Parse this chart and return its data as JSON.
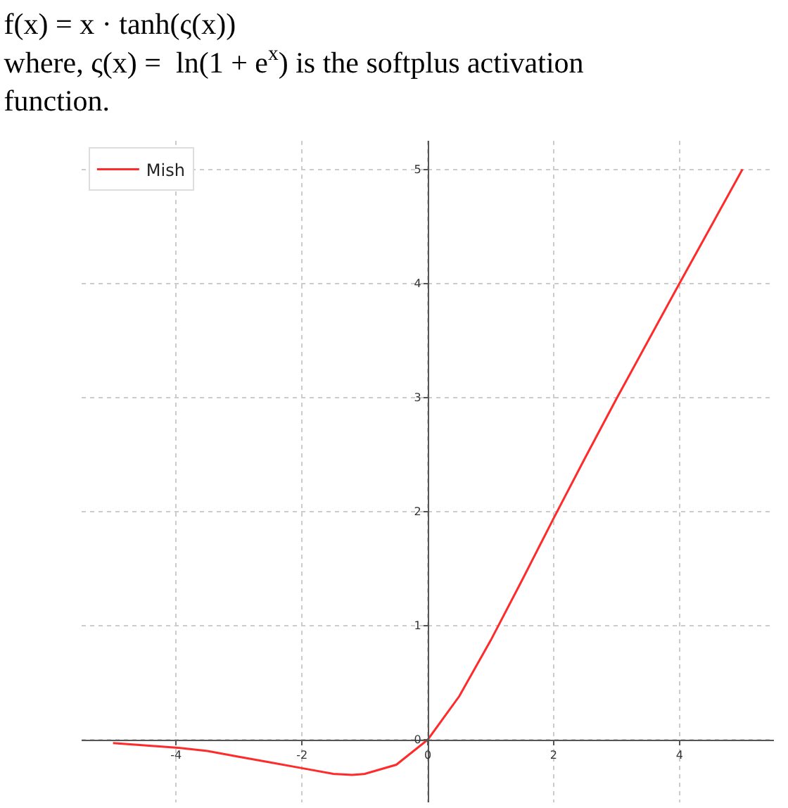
{
  "chart_data": {
    "type": "line",
    "title": "f(x) = x · tanh(ς(x))",
    "subtitle": "where, ς(x) =  ln(1 + e$^{x}$) is the softplus activation function.",
    "x": [
      -5,
      -4.5,
      -4,
      -3.5,
      -3,
      -2.5,
      -2,
      -1.5,
      -1.2,
      -1,
      -0.5,
      0,
      0.5,
      1,
      1.5,
      2,
      2.5,
      3,
      4,
      5
    ],
    "series": [
      {
        "name": "Mish",
        "color": "#ff2a2a",
        "values": [
          -0.03,
          -0.05,
          -0.07,
          -0.1,
          -0.15,
          -0.2,
          -0.25,
          -0.3,
          -0.31,
          -0.3,
          -0.22,
          0,
          0.38,
          0.87,
          1.4,
          1.94,
          2.47,
          2.99,
          4.0,
          5.0
        ]
      }
    ],
    "xlim": [
      -5.5,
      5.5
    ],
    "ylim": [
      -0.55,
      5.25
    ],
    "xticks": [
      -4,
      -2,
      0,
      2,
      4
    ],
    "yticks": [
      0,
      1,
      2,
      3,
      4,
      5
    ],
    "grid": true,
    "legend": "top left",
    "marker": "none",
    "line_style": "solid"
  }
}
